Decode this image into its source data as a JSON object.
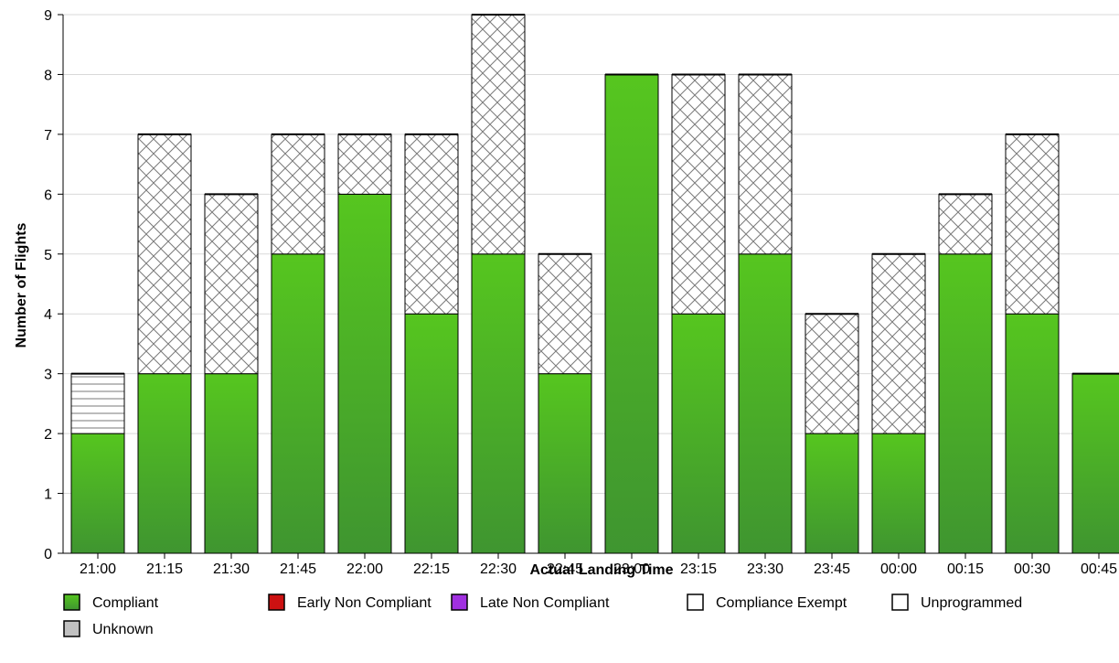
{
  "chart_data": {
    "type": "bar",
    "stacked": true,
    "xlabel": "Actual Landing Time",
    "ylabel": "Number of Flights",
    "ylim": [
      0,
      9
    ],
    "yticks": [
      "0",
      "1",
      "2",
      "3",
      "4",
      "5",
      "6",
      "7",
      "8",
      "9"
    ],
    "grid": true,
    "legend_placement": "bottom",
    "categories": [
      "21:00",
      "21:15",
      "21:30",
      "21:45",
      "22:00",
      "22:15",
      "22:30",
      "22:45",
      "23:00",
      "23:15",
      "23:30",
      "23:45",
      "00:00",
      "00:15",
      "00:30",
      "00:45"
    ],
    "series": [
      {
        "name": "Compliant",
        "color": "#4cb82a",
        "pattern": "solid",
        "values": [
          2,
          3,
          3,
          5,
          6,
          4,
          5,
          3,
          8,
          4,
          5,
          2,
          2,
          5,
          4,
          3
        ]
      },
      {
        "name": "Early Non Compliant",
        "color": "#cc1111",
        "pattern": "solid",
        "values": [
          0,
          0,
          0,
          0,
          0,
          0,
          0,
          0,
          0,
          0,
          0,
          0,
          0,
          0,
          0,
          0
        ]
      },
      {
        "name": "Late Non Compliant",
        "color": "#a030e0",
        "pattern": "solid",
        "values": [
          0,
          0,
          0,
          0,
          0,
          0,
          0,
          0,
          0,
          0,
          0,
          0,
          0,
          0,
          0,
          0
        ]
      },
      {
        "name": "Compliance Exempt",
        "color": "#ffffff",
        "pattern": "crosshatch",
        "values": [
          0,
          4,
          3,
          2,
          1,
          3,
          4,
          2,
          0,
          4,
          3,
          2,
          3,
          1,
          3,
          0
        ]
      },
      {
        "name": "Unprogrammed",
        "color": "#ffffff",
        "pattern": "horizontal-lines",
        "values": [
          1,
          0,
          0,
          0,
          0,
          0,
          0,
          0,
          0,
          0,
          0,
          0,
          0,
          0,
          0,
          0
        ]
      },
      {
        "name": "Unknown",
        "color": "#c0c0c0",
        "pattern": "solid",
        "values": [
          0,
          0,
          0,
          0,
          0,
          0,
          0,
          0,
          0,
          0,
          0,
          0,
          0,
          0,
          0,
          0
        ]
      }
    ]
  }
}
